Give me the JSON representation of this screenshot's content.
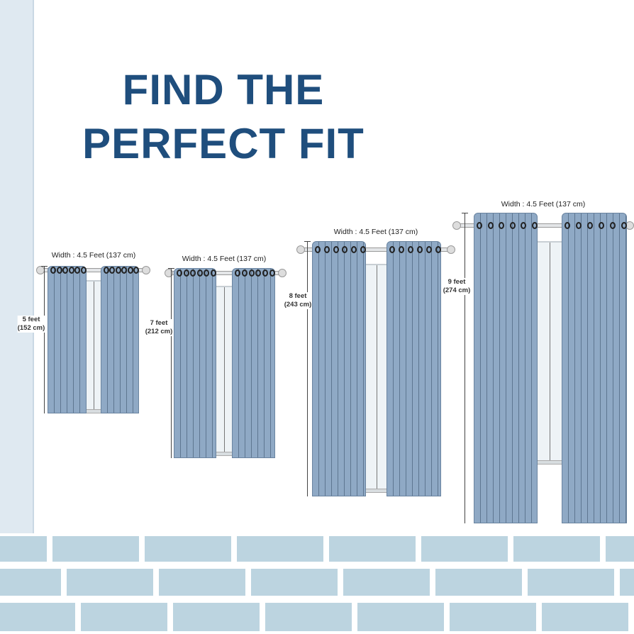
{
  "title": {
    "line1": "FIND THE",
    "line2": "PERFECT FIT"
  },
  "colors": {
    "title": "#1f4e7d",
    "curtain": "#8fa9c5",
    "floor_tile": "#bcd4e0",
    "wall": "#dfe9f1"
  },
  "sizes": [
    {
      "width_label": "Width : 4.5 Feet (137 cm)",
      "height_feet": "5 feet",
      "height_cm": "(152 cm)"
    },
    {
      "width_label": "Width : 4.5 Feet (137 cm)",
      "height_feet": "7 feet",
      "height_cm": "(212 cm)"
    },
    {
      "width_label": "Width : 4.5 Feet (137 cm)",
      "height_feet": "8 feet",
      "height_cm": "(243 cm)"
    },
    {
      "width_label": "Width : 4.5 Feet (137 cm)",
      "height_feet": "9 feet",
      "height_cm": "(274 cm)"
    }
  ]
}
